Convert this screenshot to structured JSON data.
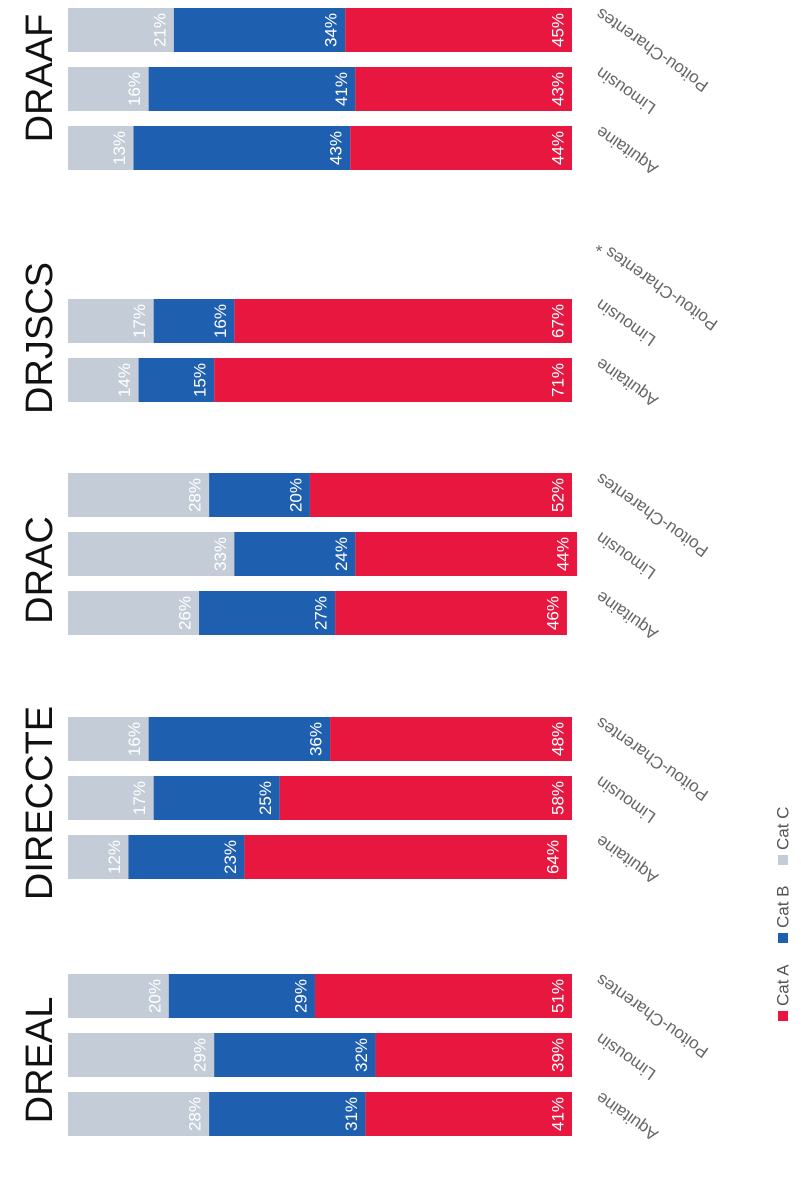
{
  "chart_data": {
    "type": "bar",
    "orientation": "stacked-percent",
    "legend": [
      {
        "name": "Cat A",
        "color": "#e8173f"
      },
      {
        "name": "Cat B",
        "color": "#1f5fb0"
      },
      {
        "name": "Cat C",
        "color": "#c4cdd7"
      }
    ],
    "groups": [
      {
        "title": "DREAL",
        "categories": [
          "Aquitaine",
          "Limousin",
          "Poitou-Charentes"
        ],
        "series": [
          {
            "name": "Cat C",
            "values": [
              28,
              29,
              20
            ],
            "labels": [
              "28%",
              "29%",
              "20%"
            ]
          },
          {
            "name": "Cat B",
            "values": [
              31,
              32,
              29
            ],
            "labels": [
              "31%",
              "32%",
              "29%"
            ]
          },
          {
            "name": "Cat A",
            "values": [
              41,
              39,
              51
            ],
            "labels": [
              "41%",
              "39%",
              "51%"
            ]
          }
        ]
      },
      {
        "title": "DIRECCTE",
        "categories": [
          "Aquitaine",
          "Limousin",
          "Poitou-Charentes"
        ],
        "series": [
          {
            "name": "Cat C",
            "values": [
              12,
              17,
              16
            ],
            "labels": [
              "12%",
              "17%",
              "16%"
            ]
          },
          {
            "name": "Cat B",
            "values": [
              23,
              25,
              36
            ],
            "labels": [
              "23%",
              "25%",
              "36%"
            ]
          },
          {
            "name": "Cat A",
            "values": [
              64,
              58,
              48
            ],
            "labels": [
              "64%",
              "58%",
              "48%"
            ]
          }
        ]
      },
      {
        "title": "DRAC",
        "categories": [
          "Aquitaine",
          "Limousin",
          "Poitou-Charentes"
        ],
        "series": [
          {
            "name": "Cat C",
            "values": [
              26,
              33,
              28
            ],
            "labels": [
              "26%",
              "33%",
              "28%"
            ]
          },
          {
            "name": "Cat B",
            "values": [
              27,
              24,
              20
            ],
            "labels": [
              "27%",
              "24%",
              "20%"
            ]
          },
          {
            "name": "Cat A",
            "values": [
              46,
              44,
              52
            ],
            "labels": [
              "46%",
              "44%",
              "52%"
            ]
          }
        ]
      },
      {
        "title": "DRJSCS",
        "categories": [
          "Aquitaine",
          "Limousin",
          "Poitou-Charentes *"
        ],
        "series": [
          {
            "name": "Cat C",
            "values": [
              14,
              17
            ],
            "labels": [
              "14%",
              "17%"
            ]
          },
          {
            "name": "Cat B",
            "values": [
              15,
              16
            ],
            "labels": [
              "15%",
              "16%"
            ]
          },
          {
            "name": "Cat A",
            "values": [
              71,
              67
            ],
            "labels": [
              "71%",
              "67%"
            ]
          }
        ]
      },
      {
        "title": "DRAAF",
        "categories": [
          "Aquitaine",
          "Limousin",
          "Poitou-Charentes"
        ],
        "series": [
          {
            "name": "Cat C",
            "values": [
              13,
              16,
              21
            ],
            "labels": [
              "13%",
              "16%",
              "21%"
            ]
          },
          {
            "name": "Cat B",
            "values": [
              43,
              41,
              34
            ],
            "labels": [
              "43%",
              "41%",
              "34%"
            ]
          },
          {
            "name": "Cat A",
            "values": [
              44,
              43,
              45
            ],
            "labels": [
              "44%",
              "43%",
              "45%"
            ]
          }
        ]
      }
    ]
  }
}
